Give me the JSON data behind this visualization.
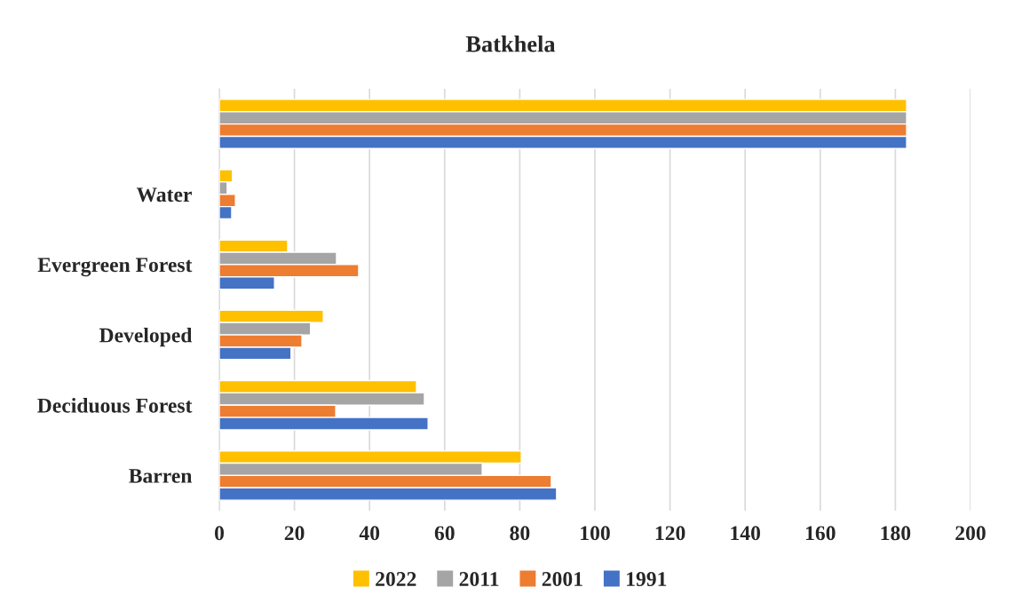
{
  "chart_data": {
    "type": "bar",
    "orientation": "horizontal",
    "title": "Batkhela",
    "categories": [
      null,
      "Water",
      "Evergreen Forest",
      "Developed",
      "Deciduous Forest",
      "Barren"
    ],
    "series": [
      {
        "name": "2022",
        "color": "#ffc000",
        "values": [
          183,
          3.5,
          18.2,
          27.7,
          52.5,
          80.4
        ]
      },
      {
        "name": "2011",
        "color": "#a5a5a5",
        "values": [
          183,
          2.1,
          31.2,
          24.3,
          54.6,
          70.0
        ]
      },
      {
        "name": "2001",
        "color": "#ed7d31",
        "values": [
          183,
          4.3,
          37.1,
          22.0,
          31.0,
          88.4
        ]
      },
      {
        "name": "1991",
        "color": "#4472c4",
        "values": [
          183,
          3.3,
          14.7,
          19.1,
          55.6,
          89.8
        ]
      }
    ],
    "xlim": [
      0,
      200
    ],
    "xticks": [
      0,
      20,
      40,
      60,
      80,
      100,
      120,
      140,
      160,
      180,
      200
    ],
    "grid": "x",
    "legend": "bottom"
  }
}
